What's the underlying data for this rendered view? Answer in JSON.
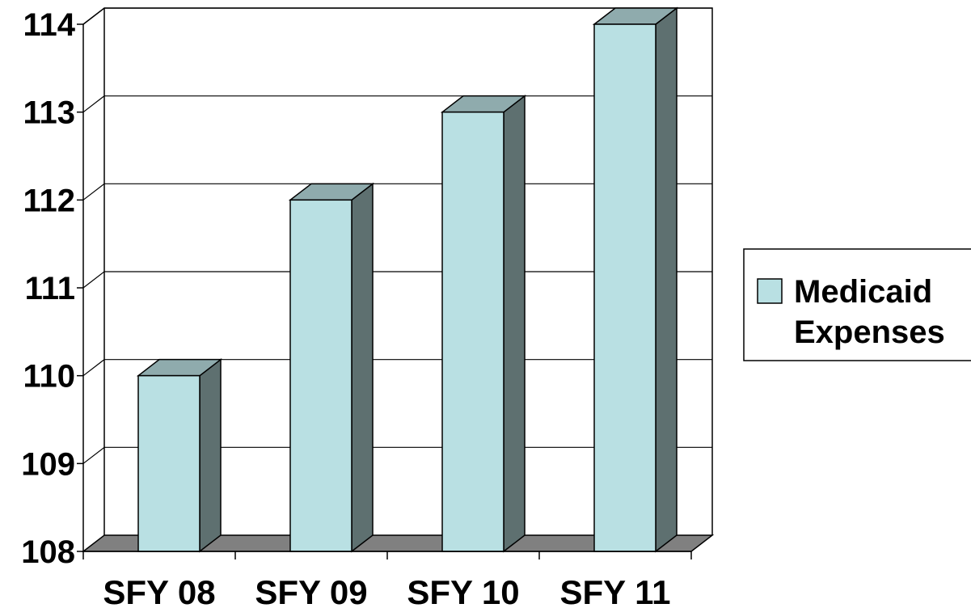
{
  "chart_data": {
    "type": "bar",
    "style": "3d-column",
    "categories": [
      "SFY 08",
      "SFY 09",
      "SFY 10",
      "SFY 11"
    ],
    "series": [
      {
        "name": "Medicaid Expenses",
        "values": [
          110,
          112,
          113,
          114
        ]
      }
    ],
    "ylim": [
      108,
      114
    ],
    "yticks": [
      108,
      109,
      110,
      111,
      112,
      113,
      114
    ],
    "ytick_labels": [
      "108",
      "109",
      "110",
      "111",
      "112",
      "113",
      "114"
    ],
    "grid": true,
    "legend_position": "right",
    "legend_lines": [
      "Medicaid",
      "Expenses"
    ],
    "colors": {
      "bar_front": "#b9e0e3",
      "bar_top": "#8fabad",
      "bar_side": "#5e7070",
      "floor": "#808080"
    }
  }
}
